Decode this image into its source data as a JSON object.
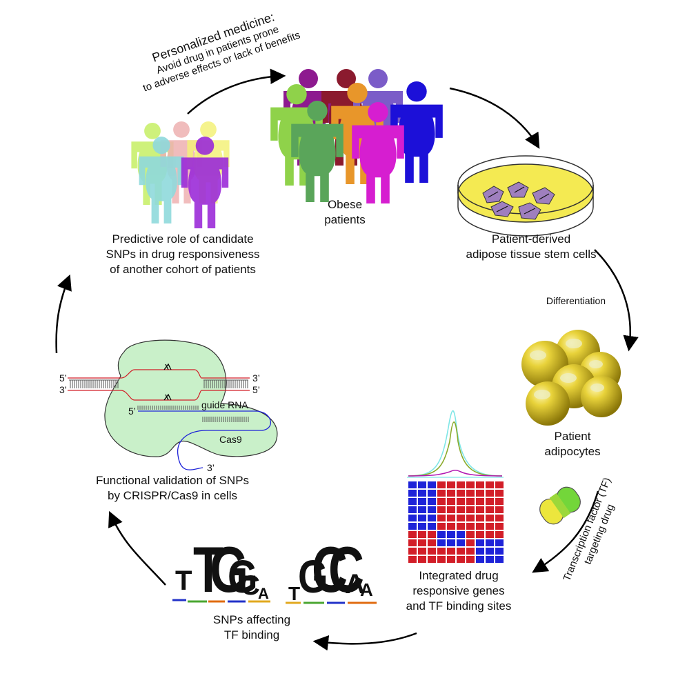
{
  "personalized": {
    "title": "Personalized medicine:",
    "line1": "Avoid drug in patients prone",
    "line2": "to adverse effects or lack of benefits"
  },
  "obese": {
    "line1": "Obese",
    "line2": "patients"
  },
  "stem_cells": {
    "line1": "Patient-derived",
    "line2": "adipose tissue stem cells"
  },
  "differentiation": "Differentiation",
  "adipocytes": {
    "line1": "Patient",
    "line2": "adipocytes"
  },
  "tf_drug": {
    "line1": "Transcription factor (TF)",
    "line2": "targeting drug"
  },
  "integrated": {
    "line1": "Integrated drug",
    "line2": "responsive genes",
    "line3": "and TF binding sites"
  },
  "snps_tf": {
    "line1": "SNPs affecting",
    "line2": "TF binding"
  },
  "crispr": {
    "title1": "Functional validation of SNPs",
    "title2": "by CRISPR/Cas9 in cells",
    "five_prime": "5’",
    "three_prime": "3’",
    "guide_rna": "guide RNA",
    "cas9": "Cas9"
  },
  "predictive": {
    "line1": "Predictive role of candidate",
    "line2": "SNPs in drug responsiveness",
    "line3": "of another cohort of patients"
  },
  "motifs": {
    "left": [
      "T",
      "T",
      "G",
      "G",
      "C",
      "A"
    ],
    "right": [
      "T",
      "G",
      "C",
      "C",
      "A",
      "A"
    ]
  },
  "colors": {
    "obese_people": [
      "#8d1a8f",
      "#8b1a2e",
      "#7b5cc8",
      "#8fd24a",
      "#e8962a",
      "#1c10d8",
      "#5aa55a",
      "#d61ed0"
    ],
    "predictive_people": [
      "#c6ef64",
      "#eeb1b1",
      "#f4f27a",
      "#8fd9dc",
      "#9b2bd8"
    ],
    "dish_fill": "#f4ea52",
    "cell_fill": "#9f7fbe",
    "sphere": "#c7b01a",
    "heatmap_red": "#d21e28",
    "heatmap_blue": "#1e23d8",
    "crispr_blob": "#c9f0c9",
    "dna_red": "#d21e28",
    "guide_blue": "#1e23d8",
    "pill_top": "#ece63d",
    "pill_bottom": "#73d63a"
  }
}
